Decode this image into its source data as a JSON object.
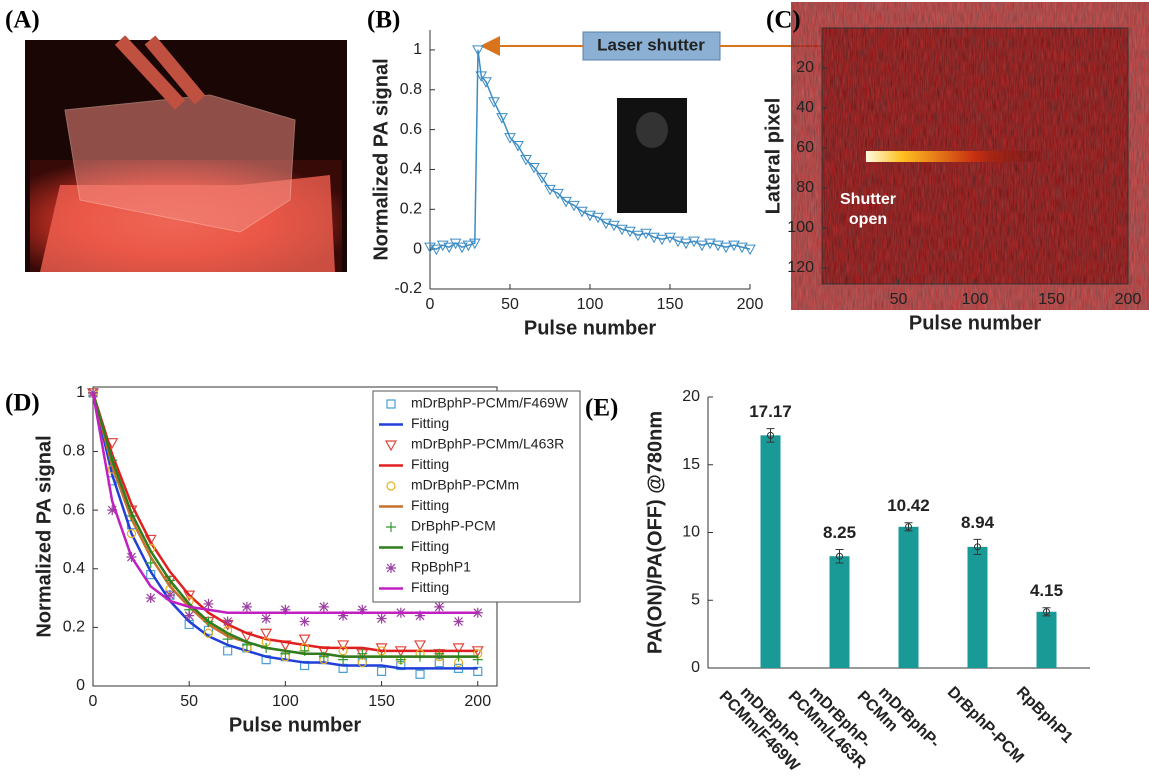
{
  "photo": {
    "panel_label": "(A)"
  },
  "chart_data": [
    {
      "type": "line",
      "panel_label": "(B)",
      "x_label": "Pulse number",
      "y_label": "Normalized PA signal",
      "annotation": "Laser shutter",
      "xlim": [
        0,
        200
      ],
      "xticks": [
        0,
        50,
        100,
        150,
        200
      ],
      "ylim": [
        -0.2,
        1.1
      ],
      "yticks": [
        -0.2,
        0,
        0.2,
        0.4,
        0.6,
        0.8,
        1
      ],
      "color": "#3c8dc4",
      "x": [
        0,
        4,
        8,
        12,
        16,
        20,
        24,
        28,
        30,
        32,
        35,
        40,
        45,
        50,
        55,
        60,
        65,
        70,
        75,
        80,
        85,
        90,
        95,
        100,
        105,
        110,
        115,
        120,
        125,
        130,
        135,
        140,
        145,
        150,
        155,
        160,
        165,
        170,
        175,
        180,
        185,
        190,
        195,
        200
      ],
      "values": [
        0.01,
        0.0,
        0.02,
        0.01,
        0.03,
        0.01,
        0.02,
        0.03,
        1.0,
        0.87,
        0.84,
        0.74,
        0.66,
        0.56,
        0.52,
        0.45,
        0.41,
        0.36,
        0.3,
        0.28,
        0.24,
        0.22,
        0.19,
        0.17,
        0.16,
        0.13,
        0.12,
        0.1,
        0.09,
        0.07,
        0.08,
        0.06,
        0.05,
        0.06,
        0.04,
        0.03,
        0.04,
        0.02,
        0.03,
        0.02,
        0.01,
        0.02,
        0.01,
        0.0
      ]
    },
    {
      "type": "heatmap",
      "panel_label": "(C)",
      "x_label": "Pulse number",
      "y_label": "Lateral pixel",
      "annotation_lines": [
        "Shutter",
        "open"
      ],
      "xlim": [
        0,
        200
      ],
      "xticks": [
        50,
        100,
        150,
        200
      ],
      "ylim": [
        0,
        128
      ],
      "yticks": [
        20,
        40,
        60,
        80,
        100,
        120
      ],
      "y_inverted": true
    },
    {
      "type": "scatter",
      "panel_label": "(D)",
      "x_label": "Pulse number",
      "y_label": "Normalized PA signal",
      "xlim": [
        0,
        210
      ],
      "xticks": [
        0,
        50,
        100,
        150,
        200
      ],
      "ylim": [
        0,
        1.02
      ],
      "yticks": [
        0,
        0.2,
        0.4,
        0.6,
        0.8,
        1
      ],
      "x": [
        0,
        10,
        20,
        30,
        40,
        50,
        60,
        70,
        80,
        90,
        100,
        110,
        120,
        130,
        140,
        150,
        160,
        170,
        180,
        190,
        200
      ],
      "series": [
        {
          "name": "mDrBphP-PCMm/F469W",
          "color": "#4a9fd5",
          "marker": "square",
          "values": [
            1.0,
            0.7,
            0.55,
            0.38,
            0.31,
            0.21,
            0.19,
            0.12,
            0.13,
            0.09,
            0.1,
            0.07,
            0.09,
            0.06,
            0.08,
            0.05,
            0.07,
            0.04,
            0.08,
            0.06,
            0.05
          ]
        },
        {
          "name": "Fitting",
          "color": "#1f3fd8",
          "marker": "line",
          "values": [
            1.0,
            0.72,
            0.52,
            0.39,
            0.29,
            0.22,
            0.17,
            0.14,
            0.12,
            0.1,
            0.09,
            0.08,
            0.08,
            0.07,
            0.07,
            0.07,
            0.06,
            0.06,
            0.06,
            0.06,
            0.06
          ]
        },
        {
          "name": "mDrBphP-PCMm/L463R",
          "color": "#e0463c",
          "marker": "triangle",
          "values": [
            1.0,
            0.83,
            0.6,
            0.5,
            0.36,
            0.31,
            0.22,
            0.21,
            0.17,
            0.18,
            0.14,
            0.16,
            0.12,
            0.14,
            0.11,
            0.13,
            0.12,
            0.14,
            0.11,
            0.13,
            0.12
          ]
        },
        {
          "name": "Fitting",
          "color": "#e02020",
          "marker": "line",
          "values": [
            1.0,
            0.79,
            0.62,
            0.49,
            0.39,
            0.31,
            0.25,
            0.21,
            0.18,
            0.16,
            0.15,
            0.14,
            0.13,
            0.13,
            0.13,
            0.12,
            0.12,
            0.12,
            0.12,
            0.12,
            0.12
          ]
        },
        {
          "name": "mDrBphP-PCMm",
          "color": "#e8b020",
          "marker": "circle",
          "values": [
            1.0,
            0.74,
            0.52,
            0.47,
            0.33,
            0.29,
            0.18,
            0.19,
            0.13,
            0.15,
            0.1,
            0.13,
            0.09,
            0.12,
            0.08,
            0.12,
            0.09,
            0.11,
            0.1,
            0.08,
            0.11
          ]
        },
        {
          "name": "Fitting",
          "color": "#c8702e",
          "marker": "line",
          "values": [
            1.0,
            0.75,
            0.57,
            0.44,
            0.34,
            0.27,
            0.21,
            0.17,
            0.15,
            0.13,
            0.12,
            0.11,
            0.11,
            0.1,
            0.1,
            0.1,
            0.1,
            0.1,
            0.1,
            0.1,
            0.1
          ]
        },
        {
          "name": "DrBphP-PCM",
          "color": "#2e9a2e",
          "marker": "plus",
          "values": [
            1.0,
            0.77,
            0.58,
            0.42,
            0.36,
            0.26,
            0.22,
            0.16,
            0.14,
            0.13,
            0.11,
            0.12,
            0.1,
            0.09,
            0.11,
            0.1,
            0.09,
            0.1,
            0.11,
            0.1,
            0.09
          ]
        },
        {
          "name": "Fitting",
          "color": "#2e7d1e",
          "marker": "line",
          "values": [
            1.0,
            0.77,
            0.59,
            0.46,
            0.36,
            0.28,
            0.22,
            0.18,
            0.15,
            0.13,
            0.12,
            0.11,
            0.11,
            0.1,
            0.1,
            0.1,
            0.1,
            0.1,
            0.1,
            0.1,
            0.1
          ]
        },
        {
          "name": "RpBphP1",
          "color": "#9b3fa0",
          "marker": "star",
          "values": [
            1.0,
            0.6,
            0.44,
            0.3,
            0.31,
            0.24,
            0.28,
            0.22,
            0.27,
            0.23,
            0.26,
            0.22,
            0.27,
            0.24,
            0.26,
            0.23,
            0.25,
            0.24,
            0.27,
            0.22,
            0.25
          ]
        },
        {
          "name": "Fitting",
          "color": "#c020c0",
          "marker": "line",
          "values": [
            1.0,
            0.63,
            0.44,
            0.34,
            0.29,
            0.27,
            0.26,
            0.25,
            0.25,
            0.25,
            0.25,
            0.25,
            0.25,
            0.25,
            0.25,
            0.25,
            0.25,
            0.25,
            0.25,
            0.25,
            0.25
          ]
        }
      ]
    },
    {
      "type": "bar",
      "panel_label": "(E)",
      "y_label": "PA(ON)/PA(OFF) @780nm",
      "categories": [
        [
          "mDrBphP-",
          "PCMm/F469W"
        ],
        [
          "mDrBphP-",
          "PCMm/L463R"
        ],
        [
          "mDrBphP-",
          "PCMm"
        ],
        [
          "DrBphP-PCM"
        ],
        [
          "RpBphP1"
        ]
      ],
      "values": [
        17.17,
        8.25,
        10.42,
        8.94,
        4.15
      ],
      "errors": [
        0.5,
        0.5,
        0.3,
        0.55,
        0.3
      ],
      "color": "#1a9a96",
      "ylim": [
        0,
        20
      ],
      "yticks": [
        0,
        5,
        10,
        15,
        20
      ]
    }
  ]
}
